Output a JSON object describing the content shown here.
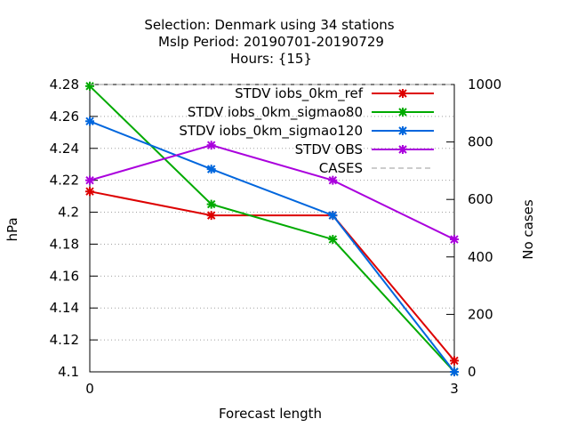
{
  "chart_data": {
    "type": "line",
    "title_lines": [
      "Selection: Denmark using    34 stations",
      "Mslp   Period: 20190701-20190729",
      "Hours: {15}"
    ],
    "xlabel": "Forecast length",
    "ylabel": "hPa",
    "y2label": "No cases",
    "x": [
      0,
      1,
      2,
      3
    ],
    "xlim": [
      0,
      3
    ],
    "x_ticks": [
      "0",
      "3"
    ],
    "ylim": [
      4.1,
      4.28
    ],
    "y_ticks": [
      "4.1",
      "4.12",
      "4.14",
      "4.16",
      "4.18",
      "4.2",
      "4.22",
      "4.24",
      "4.26",
      "4.28"
    ],
    "y2lim": [
      0,
      1000
    ],
    "y2_ticks": [
      "0",
      "200",
      "400",
      "600",
      "800",
      "1000"
    ],
    "grid": true,
    "legend_position": "top-right",
    "series": [
      {
        "name": "STDV iobs_0km_ref",
        "color": "#dd0000",
        "axis": "y",
        "values": [
          4.213,
          4.198,
          4.198,
          4.107
        ]
      },
      {
        "name": "STDV iobs_0km_sigmao80",
        "color": "#00aa00",
        "axis": "y",
        "values": [
          4.279,
          4.205,
          4.183,
          4.1
        ]
      },
      {
        "name": "STDV iobs_0km_sigmao120",
        "color": "#0066dd",
        "axis": "y",
        "values": [
          4.257,
          4.227,
          4.198,
          4.1
        ]
      },
      {
        "name": "STDV OBS",
        "color": "#aa00dd",
        "axis": "y",
        "values": [
          4.22,
          4.242,
          4.22,
          4.183
        ]
      },
      {
        "name": "CASES",
        "color": "#999999",
        "axis": "y2",
        "dashed": true,
        "values": [
          1000,
          1000,
          1000,
          1000
        ]
      }
    ]
  }
}
